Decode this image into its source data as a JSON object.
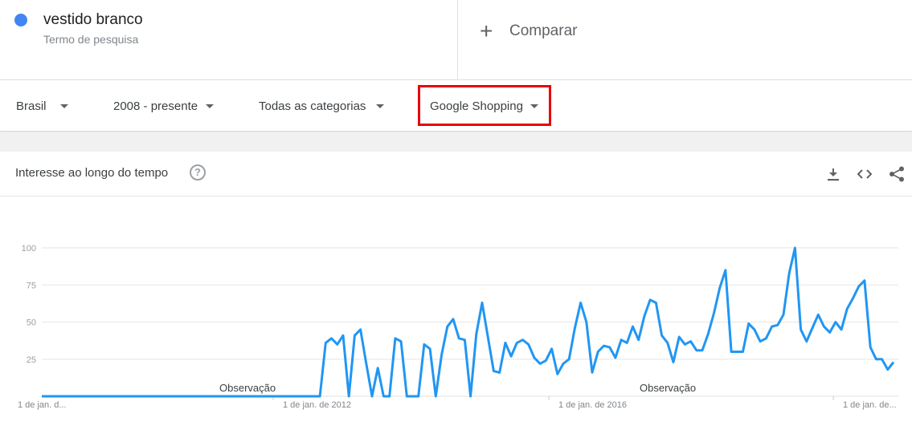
{
  "search_term": {
    "title": "vestido branco",
    "subtitle": "Termo de pesquisa",
    "color": "#4285f4"
  },
  "compare": {
    "label": "Comparar",
    "icon": "plus-icon"
  },
  "filters": [
    {
      "label": "Brasil"
    },
    {
      "label": "2008 - presente"
    },
    {
      "label": "Todas as categorias"
    },
    {
      "label": "Google Shopping",
      "highlighted": true
    }
  ],
  "card": {
    "title": "Interesse ao longo do tempo",
    "help_icon": "help-circle-icon",
    "tools": [
      "download-icon",
      "embed-code-icon",
      "share-icon"
    ]
  },
  "chart_data": {
    "type": "line",
    "y_ticks": [
      "100",
      "75",
      "50",
      "25"
    ],
    "ylim": [
      0,
      100
    ],
    "x_ticks": [
      "1 de jan. d...",
      "1 de jan. de 2012",
      "1 de jan. de 2016",
      "1 de jan. de..."
    ],
    "annotations": [
      "Observação",
      "Observação"
    ],
    "series_color": "#2196f3",
    "grid": true,
    "values": [
      0,
      0,
      0,
      0,
      0,
      0,
      0,
      0,
      0,
      0,
      0,
      0,
      0,
      0,
      0,
      0,
      0,
      0,
      0,
      0,
      0,
      0,
      0,
      0,
      0,
      0,
      0,
      0,
      0,
      0,
      0,
      0,
      0,
      0,
      0,
      0,
      0,
      0,
      0,
      0,
      0,
      0,
      0,
      0,
      0,
      0,
      0,
      0,
      0,
      36,
      39,
      35,
      41,
      0,
      41,
      45,
      22,
      0,
      19,
      0,
      0,
      39,
      37,
      0,
      0,
      0,
      35,
      32,
      0,
      28,
      47,
      52,
      39,
      38,
      0,
      42,
      63,
      40,
      17,
      16,
      36,
      27,
      36,
      38,
      35,
      26,
      22,
      24,
      32,
      15,
      22,
      25,
      46,
      63,
      50,
      16,
      30,
      34,
      33,
      26,
      38,
      36,
      47,
      38,
      54,
      65,
      63,
      41,
      36,
      23,
      40,
      35,
      37,
      31,
      31,
      42,
      56,
      73,
      85,
      30,
      30,
      30,
      49,
      45,
      37,
      39,
      47,
      48,
      55,
      83,
      100,
      45,
      37,
      46,
      55,
      47,
      43,
      50,
      45,
      59,
      66,
      74,
      78,
      33,
      25,
      25,
      18,
      23
    ]
  }
}
